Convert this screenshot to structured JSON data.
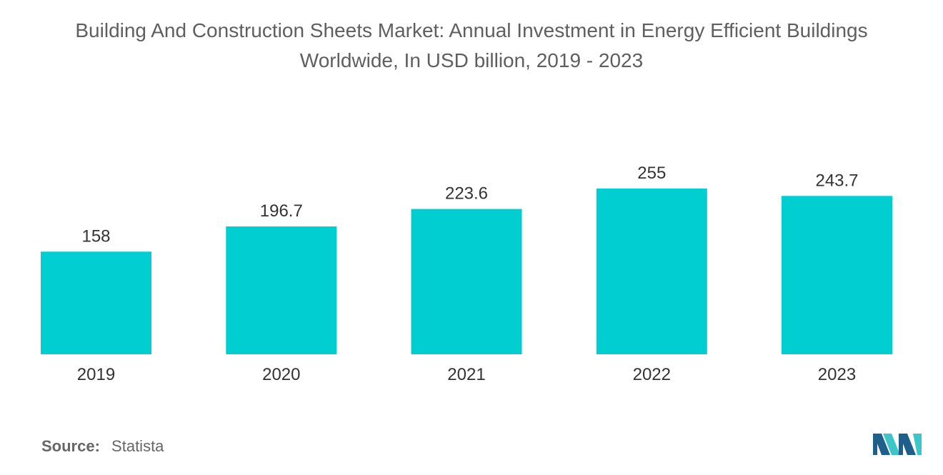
{
  "title": {
    "line1": "Building And Construction Sheets Market: Annual Investment in Energy Efficient Buildings",
    "line2": "Worldwide, In USD billion, 2019 - 2023"
  },
  "source": {
    "label": "Source:",
    "value": "Statista"
  },
  "colors": {
    "bar": "#00CED1",
    "text": "#333333",
    "title": "#5f5f5f",
    "logo_dark": "#1f5f8b",
    "logo_light": "#3cc6c9"
  },
  "chart_data": {
    "type": "bar",
    "title": "Building And Construction Sheets Market: Annual Investment in Energy Efficient Buildings Worldwide, In USD billion, 2019 - 2023",
    "categories": [
      "2019",
      "2020",
      "2021",
      "2022",
      "2023"
    ],
    "values": [
      158,
      196.7,
      223.6,
      255,
      243.7
    ],
    "value_labels": [
      "158",
      "196.7",
      "223.6",
      "255",
      "243.7"
    ],
    "xlabel": "",
    "ylabel": "",
    "ylim": [
      0,
      255
    ],
    "grid": false,
    "legend": "none"
  }
}
